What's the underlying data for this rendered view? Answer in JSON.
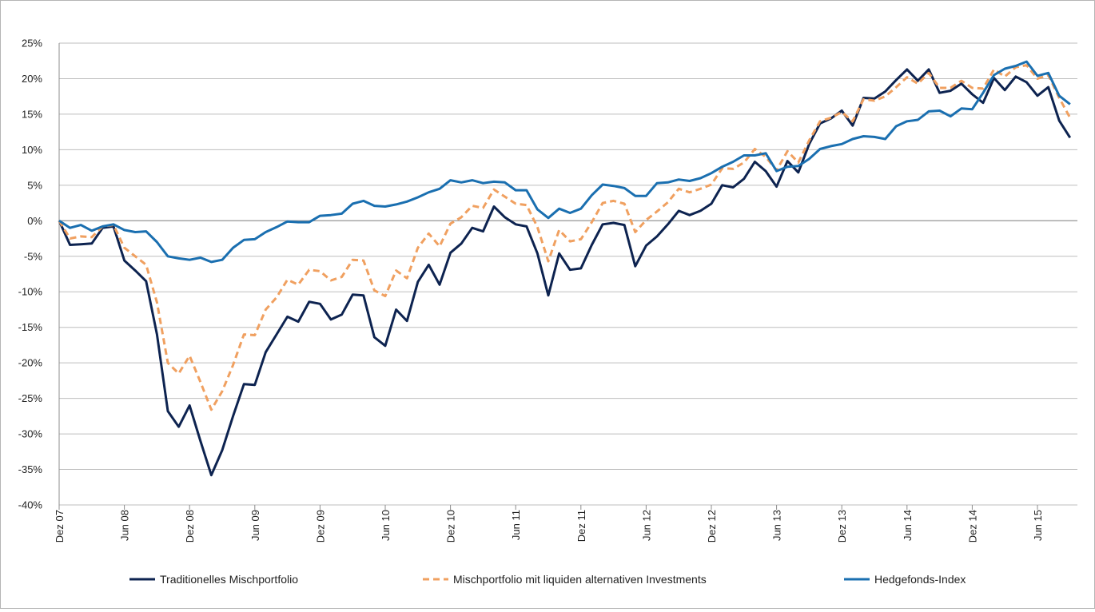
{
  "chart_data": {
    "type": "line",
    "ylim": [
      -40,
      25
    ],
    "y_ticks": [
      25,
      20,
      15,
      10,
      5,
      0,
      -5,
      -10,
      -15,
      -20,
      -25,
      -30,
      -35,
      -40
    ],
    "y_tick_labels": [
      "25%",
      "20%",
      "15%",
      "10%",
      "5%",
      "0%",
      "-5%",
      "-10%",
      "-15%",
      "-20%",
      "-25%",
      "-30%",
      "-35%",
      "-40%"
    ],
    "x_tick_labels": [
      "Dez 07",
      "Jun 08",
      "Dez 08",
      "Jun 09",
      "Dez 09",
      "Jun 10",
      "Dez 10",
      "Jun 11",
      "Dez 11",
      "Jun 12",
      "Dez 12",
      "Jun 13",
      "Dez 13",
      "Jun 14",
      "Dez 14",
      "Jun 15"
    ],
    "x_tick_months": [
      0,
      6,
      12,
      18,
      24,
      30,
      36,
      42,
      48,
      54,
      60,
      66,
      72,
      78,
      84,
      90
    ],
    "months_total": 94,
    "grid": true,
    "legend_position": "bottom",
    "series": [
      {
        "name": "Traditionelles Mischportfolio",
        "color": "#0d2350",
        "dash": false,
        "values": [
          0,
          -3.4,
          -3.3,
          -3.2,
          -1,
          -0.8,
          -5.6,
          -7,
          -8.5,
          -16,
          -26.8,
          -29,
          -26,
          -31,
          -35.8,
          -32.3,
          -27.5,
          -23,
          -23.1,
          -18.5,
          -16,
          -13.5,
          -14.2,
          -11.4,
          -11.7,
          -13.9,
          -13.2,
          -10.4,
          -10.5,
          -16.4,
          -17.6,
          -12.5,
          -14.1,
          -8.6,
          -6.2,
          -9,
          -4.5,
          -3.2,
          -1,
          -1.5,
          2,
          0.5,
          -0.5,
          -0.8,
          -4.6,
          -10.5,
          -4.6,
          -6.9,
          -6.7,
          -3.4,
          -0.5,
          -0.3,
          -0.6,
          -6.4,
          -3.5,
          -2.2,
          -0.5,
          1.4,
          0.8,
          1.4,
          2.4,
          5,
          4.7,
          5.9,
          8.3,
          7,
          4.8,
          8.4,
          6.8,
          10.8,
          13.7,
          14.4,
          15.5,
          13.4,
          17.3,
          17.2,
          18.2,
          19.8,
          21.3,
          19.7,
          21.3,
          18,
          18.3,
          19.3,
          17.8,
          16.6,
          20.1,
          18.4,
          20.3,
          19.5,
          17.6,
          18.8,
          14.1,
          11.7
        ]
      },
      {
        "name": "Mischportfolio mit liquiden alternativen Investments",
        "color": "#f0a060",
        "dash": true,
        "values": [
          0,
          -2.5,
          -2.2,
          -2.3,
          -0.8,
          -0.6,
          -3.8,
          -5,
          -6.2,
          -11.5,
          -20,
          -21.5,
          -19,
          -22.7,
          -26.6,
          -24,
          -20.3,
          -16,
          -16.1,
          -12.5,
          -10.8,
          -8.3,
          -9,
          -6.9,
          -7.1,
          -8.4,
          -7.9,
          -5.5,
          -5.6,
          -9.8,
          -10.6,
          -7,
          -8.1,
          -3.8,
          -1.8,
          -3.6,
          -0.4,
          0.5,
          2.1,
          1.8,
          4.4,
          3.4,
          2.4,
          2.2,
          -0.9,
          -5.7,
          -1.3,
          -2.9,
          -2.6,
          -0.2,
          2.5,
          2.8,
          2.4,
          -1.6,
          0.1,
          1.3,
          2.6,
          4.5,
          4,
          4.5,
          5.1,
          7.4,
          7.3,
          8.2,
          10.1,
          9,
          7.1,
          9.8,
          8.2,
          11.3,
          14,
          14.5,
          15.3,
          14,
          17.1,
          16.9,
          17.5,
          18.8,
          20.2,
          19.3,
          20.8,
          18.7,
          18.7,
          19.7,
          18.7,
          18.6,
          21.3,
          20.3,
          21.6,
          21.9,
          20,
          20.5,
          17.3,
          14.5
        ]
      },
      {
        "name": "Hedgefonds-Index",
        "color": "#1a6fb0",
        "dash": false,
        "values": [
          0,
          -1,
          -0.6,
          -1.4,
          -0.8,
          -0.5,
          -1.3,
          -1.6,
          -1.5,
          -3,
          -5,
          -5.3,
          -5.5,
          -5.2,
          -5.8,
          -5.5,
          -3.8,
          -2.7,
          -2.6,
          -1.6,
          -0.9,
          -0.1,
          -0.2,
          -0.2,
          0.7,
          0.8,
          1,
          2.4,
          2.8,
          2.1,
          2,
          2.3,
          2.7,
          3.3,
          4,
          4.5,
          5.7,
          5.4,
          5.7,
          5.3,
          5.5,
          5.4,
          4.3,
          4.3,
          1.6,
          0.4,
          1.7,
          1.1,
          1.7,
          3.6,
          5.1,
          4.9,
          4.6,
          3.5,
          3.5,
          5.3,
          5.4,
          5.8,
          5.6,
          6,
          6.7,
          7.6,
          8.3,
          9.2,
          9.2,
          9.5,
          7,
          7.6,
          7.7,
          8.7,
          10.1,
          10.5,
          10.8,
          11.5,
          11.9,
          11.8,
          11.5,
          13.3,
          14,
          14.2,
          15.4,
          15.5,
          14.7,
          15.8,
          15.7,
          18,
          20.5,
          21.4,
          21.8,
          22.4,
          20.4,
          20.8,
          17.6,
          16.4
        ]
      }
    ]
  }
}
